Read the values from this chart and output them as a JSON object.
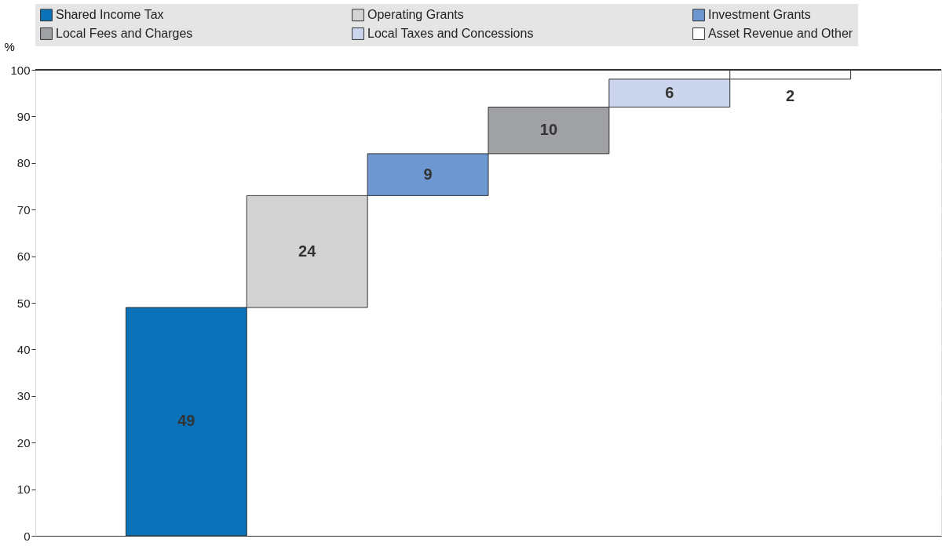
{
  "chart_data": {
    "type": "bar",
    "ylabel": "%",
    "categories": [
      null,
      null,
      null,
      null,
      null,
      null
    ],
    "series": [
      {
        "name": "Shared Income Tax",
        "color": "#0a72b8",
        "values": [
          49,
          null,
          null,
          null,
          null,
          null
        ],
        "base": [
          0,
          null,
          null,
          null,
          null,
          null
        ]
      },
      {
        "name": "Operating Grants",
        "color": "#d3d3d3",
        "values": [
          null,
          24,
          null,
          null,
          null,
          null
        ],
        "base": [
          null,
          49,
          null,
          null,
          null,
          null
        ]
      },
      {
        "name": "Investment Grants",
        "color": "#6d97d0",
        "values": [
          null,
          null,
          9,
          null,
          null,
          null
        ],
        "base": [
          null,
          null,
          73,
          null,
          null,
          null
        ]
      },
      {
        "name": "Local Fees and Charges",
        "color": "#a0a1a4",
        "values": [
          null,
          null,
          null,
          10,
          null,
          null
        ],
        "base": [
          null,
          null,
          null,
          82,
          null,
          null
        ]
      },
      {
        "name": "Local Taxes and Concessions",
        "color": "#cbd5ee",
        "values": [
          null,
          null,
          null,
          null,
          6,
          null
        ],
        "base": [
          null,
          null,
          null,
          null,
          92,
          null
        ]
      },
      {
        "name": "Asset Revenue and Other",
        "color": "#ffffff",
        "values": [
          null,
          null,
          null,
          null,
          null,
          2
        ],
        "base": [
          null,
          null,
          null,
          null,
          null,
          98
        ]
      }
    ],
    "ylim": [
      0,
      100
    ],
    "yticks": [
      0,
      10,
      20,
      30,
      40,
      50,
      60,
      70,
      80,
      90,
      100
    ],
    "grid": "y",
    "legend": "top",
    "data_labels": true,
    "tick_labels": "y"
  }
}
